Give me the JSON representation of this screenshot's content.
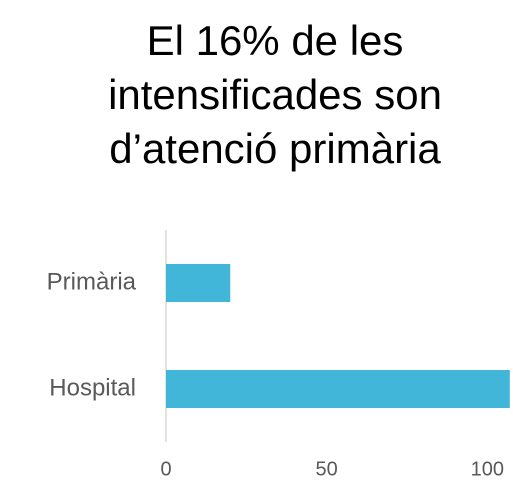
{
  "chart_data": {
    "type": "barh",
    "title": [
      "El 16% de les",
      "intensificades son",
      "d’atenció primària"
    ],
    "categories": [
      "Primària",
      "Hospital"
    ],
    "values": [
      20,
      107
    ],
    "color": "#41b6d8",
    "xlim": [
      0,
      108
    ],
    "xticks": [
      0,
      50,
      100
    ]
  }
}
